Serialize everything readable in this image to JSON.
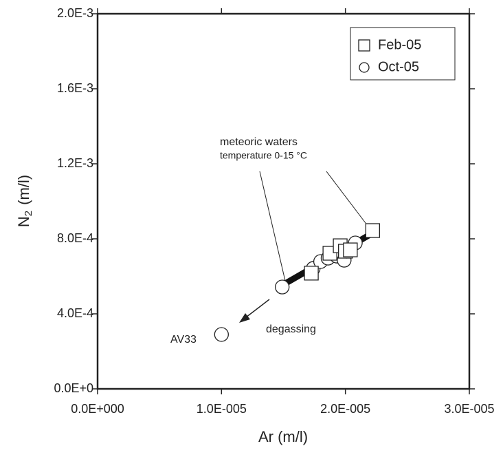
{
  "chart_data": {
    "type": "scatter",
    "xlabel": "Ar  (m/l)",
    "ylabel": {
      "main": "N",
      "sub": "2",
      "unit": "(m/l)"
    },
    "xlim": [
      0,
      3e-05
    ],
    "xticks": [
      {
        "value": 0,
        "label": "0.0E+000"
      },
      {
        "value": 1e-05,
        "label": "1.0E-005"
      },
      {
        "value": 2e-05,
        "label": "2.0E-005"
      },
      {
        "value": 3e-05,
        "label": "3.0E-005"
      }
    ],
    "ylim": [
      0,
      0.002
    ],
    "yticks": [
      {
        "value": 0,
        "label": "0.0E+0"
      },
      {
        "value": 0.0004,
        "label": "4.0E-4"
      },
      {
        "value": 0.0008,
        "label": "8.0E-4"
      },
      {
        "value": 0.0012,
        "label": "1.2E-3"
      },
      {
        "value": 0.0016,
        "label": "1.6E-3"
      },
      {
        "value": 0.002,
        "label": "2.0E-3"
      }
    ],
    "legend": "top-right",
    "series": [
      {
        "name": "Oct-05",
        "marker": "circle",
        "color": "#ffffff",
        "x": [
          1.49e-05,
          1e-05,
          1.74e-05,
          1.8e-05,
          1.86e-05,
          1.93e-05,
          1.99e-05,
          2.08e-05,
          2.01e-05
        ],
        "values": [
          0.000543,
          0.00029,
          0.000642,
          0.000679,
          0.000697,
          0.000708,
          0.000686,
          0.000778,
          0.000734
        ]
      },
      {
        "name": "Feb-05",
        "marker": "square",
        "color": "#ffffff",
        "x": [
          1.725e-05,
          1.875e-05,
          1.958e-05,
          2e-05,
          2.04e-05,
          2.22e-05
        ],
        "values": [
          0.000617,
          0.000723,
          0.000763,
          0.000734,
          0.000741,
          0.000844
        ]
      }
    ],
    "annotations": [
      "meteoric waters",
      "temperature 0-15 °C",
      "degassing",
      "AV33"
    ]
  }
}
